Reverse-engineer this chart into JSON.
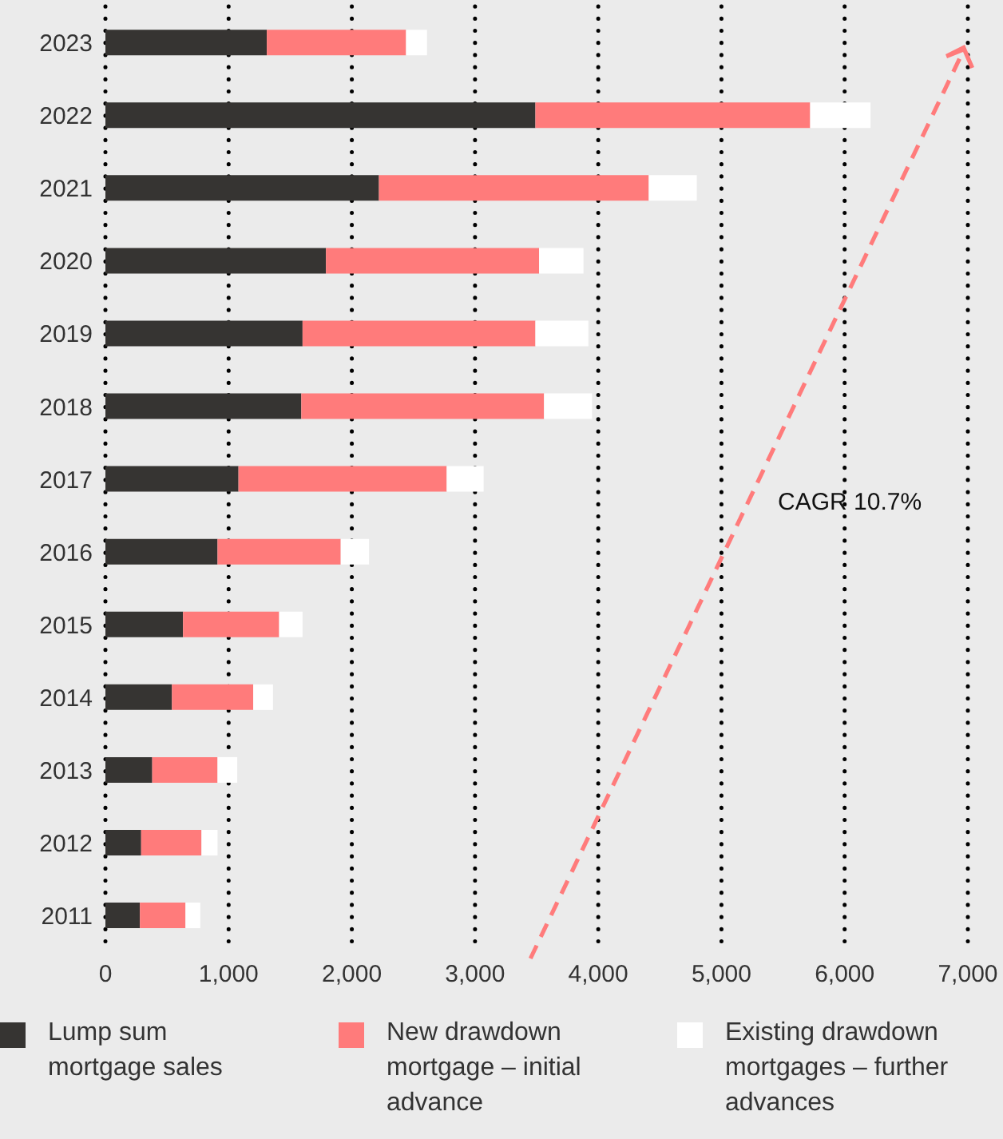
{
  "chart_data": {
    "type": "bar",
    "orientation": "horizontal",
    "stacked": true,
    "categories": [
      "2023",
      "2022",
      "2021",
      "2020",
      "2019",
      "2018",
      "2017",
      "2016",
      "2015",
      "2014",
      "2013",
      "2012",
      "2011"
    ],
    "series": [
      {
        "name": "Lump sum mortgage sales",
        "color": "#363432",
        "values": [
          1310,
          3490,
          2220,
          1790,
          1600,
          1590,
          1080,
          910,
          630,
          540,
          380,
          290,
          280
        ]
      },
      {
        "name": "New drawdown mortgage – initial advance",
        "color": "#ff7b7b",
        "values": [
          1130,
          2230,
          2190,
          1730,
          1890,
          1970,
          1690,
          1000,
          780,
          660,
          530,
          490,
          370
        ]
      },
      {
        "name": "Existing drawdown mortgages – further advances",
        "color": "#ffffff",
        "values": [
          170,
          490,
          390,
          360,
          430,
          390,
          300,
          230,
          190,
          160,
          160,
          130,
          120
        ]
      }
    ],
    "xlim": [
      0,
      7000
    ],
    "xticks": [
      0,
      {
        "value": 1000,
        "label": "1,000"
      },
      {
        "value": 2000,
        "label": "2,000"
      },
      {
        "value": 3000,
        "label": "3,000"
      },
      {
        "value": 4000,
        "label": "4,000"
      },
      {
        "value": 5000,
        "label": "5,000"
      },
      {
        "value": 6000,
        "label": "6,000"
      },
      {
        "value": 7000,
        "label": "7,000"
      }
    ],
    "grid": "x",
    "legend": "bottom",
    "annotations": [
      "CAGR 10.7%"
    ]
  }
}
